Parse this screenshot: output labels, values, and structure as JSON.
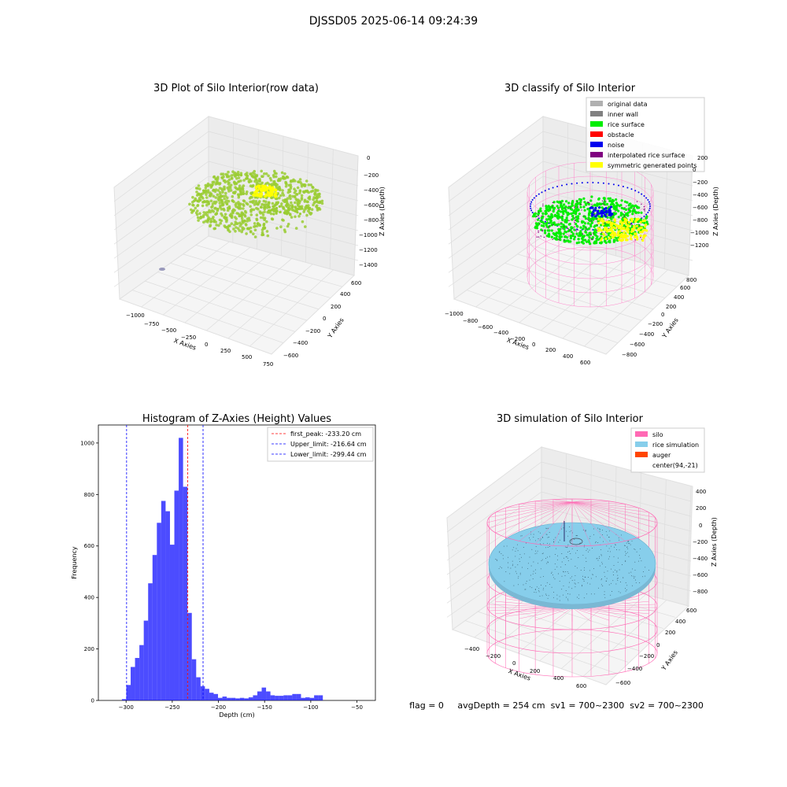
{
  "figure_title": "DJSSD05 2025-06-14 09:24:39",
  "footer_text": "flag = 0     avgDepth = 254 cm  sv1 = 700~2300  sv2 = 700~2300",
  "chart_data": [
    {
      "id": "raw",
      "type": "scatter3d",
      "title": "3D Plot of Silo Interior(row data)",
      "xlabel": "X Axies",
      "ylabel": "Y Axies",
      "zlabel": "Z Axies (Depth)",
      "x_ticks": [
        "−1000",
        "−750",
        "−500",
        "−250",
        "0",
        "250",
        "500",
        "750"
      ],
      "y_ticks": [
        "−600",
        "−400",
        "−200",
        "0",
        "200",
        "400",
        "600"
      ],
      "z_ticks": [
        "0",
        "−200",
        "−400",
        "−600",
        "−800",
        "−1000",
        "−1200",
        "−1400"
      ],
      "colors": {
        "points": "#9acd32",
        "highlight": "#ffff00"
      }
    },
    {
      "id": "classify",
      "type": "scatter3d",
      "title": "3D classify of Silo Interior",
      "xlabel": "X Axies",
      "ylabel": "Y Axies",
      "zlabel": "Z Axies (Depth)",
      "x_ticks": [
        "−1000",
        "−800",
        "−600",
        "−400",
        "−200",
        "0",
        "200",
        "400",
        "600"
      ],
      "y_ticks": [
        "−800",
        "−600",
        "−400",
        "−200",
        "0",
        "200",
        "400",
        "600",
        "800"
      ],
      "z_ticks": [
        "200",
        "0",
        "−200",
        "−400",
        "−600",
        "−800",
        "−1000",
        "−1200"
      ],
      "legend_position": "top-right",
      "legend": [
        {
          "label": "original data",
          "color": "#b0b0b0"
        },
        {
          "label": "inner wall",
          "color": "#808080"
        },
        {
          "label": "rice surface",
          "color": "#00ee00"
        },
        {
          "label": "obstacle",
          "color": "#ff0000"
        },
        {
          "label": "noise",
          "color": "#0000ee"
        },
        {
          "label": "interpolated rice surface",
          "color": "#800080"
        },
        {
          "label": "symmetric generated points",
          "color": "#ffff00"
        }
      ]
    },
    {
      "id": "hist",
      "type": "bar",
      "title": "Histogram of Z-Axies (Height) Values",
      "xlabel": "Depth (cm)",
      "ylabel": "Frequency",
      "xlim": [
        -330,
        -30
      ],
      "ylim": [
        0,
        1070
      ],
      "x_ticks": [
        -300,
        -250,
        -200,
        -150,
        -100,
        -50
      ],
      "x_tick_labels": [
        "−300",
        "−250",
        "−200",
        "−150",
        "−100",
        "−50"
      ],
      "y_ticks": [
        0,
        200,
        400,
        600,
        800,
        1000
      ],
      "bar_color": "#0000ff",
      "bin_width": 4.73,
      "bin_start": -304.5,
      "values": [
        5,
        60,
        130,
        165,
        215,
        310,
        455,
        565,
        690,
        775,
        735,
        605,
        815,
        1020,
        830,
        340,
        160,
        90,
        55,
        45,
        30,
        25,
        10,
        15,
        10,
        10,
        8,
        10,
        8,
        12,
        20,
        35,
        50,
        35,
        20,
        18,
        18,
        20,
        20,
        25,
        25,
        10,
        12,
        10,
        20,
        20
      ],
      "lines": [
        {
          "label": "first_peak: -233.20 cm",
          "x": -233.2,
          "color": "#ff0000"
        },
        {
          "label": "Upper_limit: -216.64 cm",
          "x": -216.64,
          "color": "#0000ff"
        },
        {
          "label": "Lower_limit: -299.44 cm",
          "x": -299.44,
          "color": "#0000ff"
        }
      ],
      "legend_position": "top-right"
    },
    {
      "id": "sim",
      "type": "surface3d",
      "title": "3D simulation of Silo Interior",
      "xlabel": "X Axies",
      "ylabel": "Y Axies",
      "zlabel": "Z Axies (Depth)",
      "x_ticks": [
        "−400",
        "−200",
        "0",
        "200",
        "400",
        "600"
      ],
      "y_ticks": [
        "−600",
        "−400",
        "−200",
        "0",
        "200",
        "400",
        "600"
      ],
      "z_ticks": [
        "400",
        "200",
        "0",
        "−200",
        "−400",
        "−600",
        "−800"
      ],
      "legend_position": "top-right",
      "legend": [
        {
          "label": "silo",
          "color": "#ff69b4"
        },
        {
          "label": "rice simulation",
          "color": "#87ceeb"
        },
        {
          "label": "auger",
          "color": "#ff4500"
        },
        {
          "label": "center(94,-21)",
          "color": "#ffffff"
        }
      ]
    }
  ]
}
